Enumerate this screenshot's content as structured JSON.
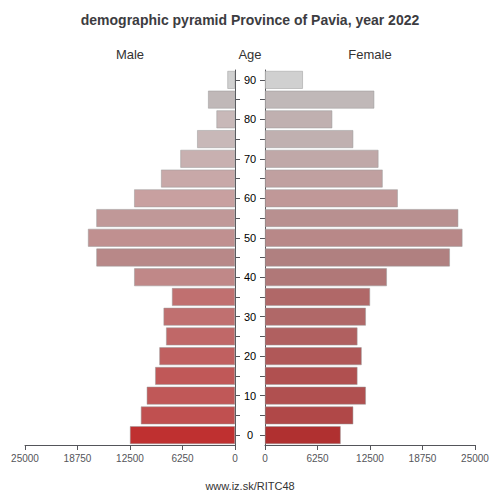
{
  "chart_data": {
    "type": "bar",
    "orientation": "horizontal",
    "title": "demographic pyramid Province of Pavia, year 2022",
    "ylabel": "Age",
    "annotations": [
      "www.iz.sk/RITC48"
    ],
    "categories": [
      "90",
      null,
      "80",
      null,
      "70",
      null,
      "60",
      null,
      "50",
      null,
      "40",
      null,
      "30",
      null,
      "20",
      null,
      "10",
      null,
      "0"
    ],
    "series": [
      {
        "name": "Male",
        "values": [
          900,
          3200,
          2200,
          4500,
          6500,
          8800,
          12000,
          16500,
          17500,
          16500,
          12000,
          7500,
          8500,
          8200,
          9000,
          9500,
          10500,
          11200,
          12500
        ],
        "colors": [
          "#d0d0d0",
          "#c0b8b8",
          "#c8b8b8",
          "#c8b8b8",
          "#c8b0b0",
          "#c8a8a8",
          "#c8a0a0",
          "#c09898",
          "#c09090",
          "#b88888",
          "#c08888",
          "#c07070",
          "#c07070",
          "#c06868",
          "#c06060",
          "#c05858",
          "#c05858",
          "#c05050",
          "#bf3030"
        ]
      },
      {
        "name": "Female",
        "values": [
          4500,
          13000,
          8000,
          10500,
          13500,
          14000,
          15800,
          23000,
          23500,
          22000,
          14500,
          12500,
          12000,
          11000,
          11500,
          11000,
          12000,
          10500,
          9000
        ],
        "colors": [
          "#d0d0d0",
          "#c0b8b8",
          "#c0b0b0",
          "#c0b0b0",
          "#c0a8a8",
          "#c0a0a0",
          "#c09898",
          "#b89090",
          "#b88888",
          "#b08080",
          "#b07878",
          "#b06868",
          "#b06868",
          "#b06060",
          "#b05858",
          "#b05050",
          "#b05050",
          "#b04848",
          "#b03030"
        ]
      }
    ],
    "xlim": [
      0,
      25000
    ],
    "xticks": [
      0,
      6250,
      12500,
      18750,
      25000
    ]
  }
}
